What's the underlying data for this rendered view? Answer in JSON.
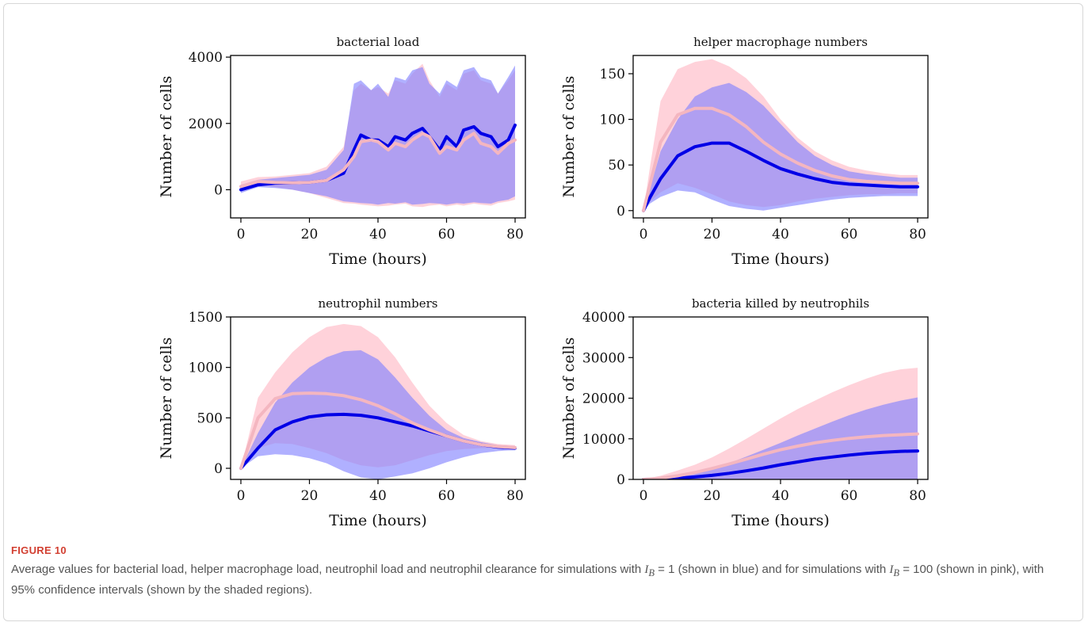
{
  "figure": {
    "label": "FIGURE 10",
    "caption_parts": {
      "part1": "Average values for bacterial load, helper macrophage load, neutrophil load and neutrophil clearance for simulations with ",
      "eq1": "I",
      "sub1": "B",
      "val1": " = 1",
      "part2": " (shown in blue) and for simulations with ",
      "eq2": "I",
      "sub2": "B",
      "val2": " = 100",
      "part3": " (shown in pink), with 95% confidence intervals (shown by the shaded regions)."
    }
  },
  "colors": {
    "blue_line": "#0000e6",
    "blue_band": "#7f7fff",
    "pink_line": "#f4b6c0",
    "pink_band": "#ffd2da",
    "overlap_band": "#b38ee0"
  },
  "chart_data": [
    {
      "type": "line",
      "title": "bacterial load",
      "xlabel": "Time (hours)",
      "ylabel": "Number of cells",
      "xlim": [
        -3,
        83
      ],
      "ylim": [
        -850,
        4050
      ],
      "xticks": [
        0,
        20,
        40,
        60,
        80
      ],
      "yticks": [
        0,
        2000,
        4000
      ],
      "x": [
        0,
        5,
        10,
        15,
        20,
        25,
        30,
        33,
        35,
        38,
        40,
        43,
        45,
        48,
        50,
        53,
        55,
        58,
        60,
        63,
        65,
        68,
        70,
        73,
        75,
        78,
        80
      ],
      "series": [
        {
          "mean": [
            0,
            150,
            200,
            210,
            220,
            280,
            500,
            1200,
            1650,
            1500,
            1500,
            1300,
            1600,
            1500,
            1700,
            1850,
            1600,
            1200,
            1600,
            1300,
            1800,
            1900,
            1700,
            1600,
            1300,
            1500,
            1950
          ],
          "lower": [
            -100,
            80,
            50,
            0,
            -100,
            -200,
            -350,
            -380,
            -400,
            -420,
            -450,
            -400,
            -420,
            -380,
            -450,
            -430,
            -400,
            -420,
            -450,
            -400,
            -420,
            -380,
            -400,
            -420,
            -350,
            -300,
            -200
          ],
          "upper": [
            150,
            300,
            350,
            400,
            450,
            600,
            1200,
            3200,
            3300,
            3000,
            3200,
            2800,
            3400,
            3300,
            3600,
            3700,
            3200,
            2900,
            3300,
            3100,
            3600,
            3700,
            3400,
            3300,
            2900,
            3400,
            3750
          ]
        },
        {
          "mean": [
            100,
            250,
            220,
            210,
            220,
            280,
            600,
            1000,
            1450,
            1500,
            1450,
            1200,
            1400,
            1300,
            1500,
            1700,
            1600,
            1100,
            1300,
            1200,
            1500,
            1700,
            1400,
            1300,
            1100,
            1400,
            1500
          ],
          "lower": [
            -50,
            150,
            80,
            0,
            -100,
            -250,
            -400,
            -420,
            -450,
            -480,
            -500,
            -480,
            -450,
            -420,
            -500,
            -520,
            -480,
            -450,
            -500,
            -450,
            -480,
            -420,
            -450,
            -480,
            -400,
            -350,
            -300
          ],
          "upper": [
            250,
            380,
            400,
            450,
            500,
            700,
            1300,
            3000,
            3200,
            3000,
            3100,
            2900,
            3300,
            3200,
            3500,
            3800,
            3300,
            2800,
            3200,
            3000,
            3500,
            3600,
            3300,
            3200,
            2900,
            3300,
            3600
          ]
        }
      ]
    },
    {
      "type": "line",
      "title": "helper macrophage numbers",
      "xlabel": "Time (hours)",
      "ylabel": "Number of cells",
      "xlim": [
        -3,
        83
      ],
      "ylim": [
        -8,
        170
      ],
      "xticks": [
        0,
        20,
        40,
        60,
        80
      ],
      "yticks": [
        0,
        50,
        100,
        150
      ],
      "x": [
        0,
        2,
        5,
        10,
        15,
        20,
        25,
        30,
        35,
        40,
        45,
        50,
        55,
        60,
        65,
        70,
        75,
        80
      ],
      "series": [
        {
          "mean": [
            0,
            15,
            35,
            60,
            70,
            74,
            74,
            65,
            55,
            46,
            40,
            35,
            31,
            29,
            28,
            27,
            26,
            26
          ],
          "lower": [
            0,
            8,
            15,
            22,
            20,
            12,
            5,
            2,
            0,
            3,
            6,
            9,
            12,
            14,
            15,
            16,
            16,
            16
          ],
          "upper": [
            0,
            25,
            65,
            100,
            125,
            135,
            140,
            130,
            115,
            95,
            75,
            60,
            50,
            43,
            40,
            38,
            36,
            36
          ]
        },
        {
          "mean": [
            0,
            30,
            75,
            105,
            112,
            112,
            105,
            92,
            75,
            62,
            52,
            44,
            38,
            34,
            32,
            31,
            30,
            30
          ],
          "lower": [
            0,
            10,
            20,
            30,
            25,
            18,
            10,
            6,
            4,
            6,
            10,
            13,
            15,
            17,
            18,
            18,
            19,
            19
          ],
          "upper": [
            0,
            50,
            120,
            155,
            163,
            166,
            158,
            145,
            125,
            100,
            80,
            65,
            55,
            48,
            44,
            41,
            39,
            39
          ]
        }
      ]
    },
    {
      "type": "line",
      "title": "neutrophil numbers",
      "xlabel": "Time (hours)",
      "ylabel": "Number of cells",
      "xlim": [
        -3,
        83
      ],
      "ylim": [
        -110,
        1500
      ],
      "xticks": [
        0,
        20,
        40,
        60,
        80
      ],
      "yticks": [
        0,
        500,
        1000,
        1500
      ],
      "x": [
        0,
        5,
        10,
        15,
        20,
        25,
        30,
        35,
        40,
        45,
        50,
        55,
        60,
        65,
        70,
        75,
        80
      ],
      "series": [
        {
          "mean": [
            0,
            200,
            380,
            460,
            510,
            530,
            535,
            525,
            500,
            460,
            420,
            370,
            320,
            270,
            235,
            210,
            200
          ],
          "lower": [
            0,
            120,
            140,
            130,
            100,
            50,
            -30,
            -90,
            -110,
            -80,
            -50,
            0,
            60,
            110,
            150,
            170,
            180
          ],
          "upper": [
            0,
            350,
            650,
            850,
            1000,
            1100,
            1160,
            1170,
            1080,
            900,
            700,
            520,
            380,
            300,
            260,
            230,
            220
          ]
        },
        {
          "mean": [
            0,
            500,
            690,
            740,
            745,
            740,
            720,
            680,
            620,
            540,
            450,
            380,
            320,
            270,
            235,
            215,
            205
          ],
          "lower": [
            0,
            200,
            250,
            240,
            200,
            150,
            80,
            30,
            10,
            30,
            80,
            130,
            170,
            190,
            200,
            200,
            195
          ],
          "upper": [
            0,
            700,
            950,
            1150,
            1300,
            1400,
            1430,
            1410,
            1300,
            1100,
            850,
            620,
            450,
            330,
            270,
            240,
            230
          ]
        }
      ]
    },
    {
      "type": "line",
      "title": "bacteria killed by neutrophils",
      "xlabel": "Time (hours)",
      "ylabel": "Number of cells",
      "xlim": [
        -3,
        83
      ],
      "ylim": [
        0,
        40000
      ],
      "xticks": [
        0,
        20,
        40,
        60,
        80
      ],
      "yticks": [
        0,
        10000,
        20000,
        30000,
        40000
      ],
      "x": [
        0,
        5,
        10,
        15,
        20,
        25,
        30,
        35,
        40,
        45,
        50,
        55,
        60,
        65,
        70,
        75,
        80
      ],
      "series": [
        {
          "mean": [
            0,
            100,
            300,
            600,
            1000,
            1500,
            2100,
            2800,
            3600,
            4300,
            5000,
            5500,
            6000,
            6400,
            6700,
            6900,
            7000
          ],
          "lower": [
            0,
            0,
            0,
            0,
            0,
            0,
            0,
            0,
            0,
            0,
            0,
            0,
            0,
            0,
            0,
            0,
            0
          ],
          "upper": [
            0,
            300,
            900,
            1700,
            2700,
            4000,
            5600,
            7300,
            9000,
            10800,
            12500,
            14200,
            15800,
            17200,
            18400,
            19400,
            20200
          ]
        },
        {
          "mean": [
            0,
            300,
            900,
            1700,
            2700,
            3800,
            5000,
            6200,
            7300,
            8200,
            9000,
            9600,
            10100,
            10500,
            10800,
            11000,
            11200
          ],
          "lower": [
            0,
            0,
            0,
            0,
            0,
            0,
            0,
            0,
            0,
            0,
            0,
            0,
            0,
            0,
            0,
            0,
            0
          ],
          "upper": [
            0,
            900,
            2200,
            3600,
            5400,
            7600,
            10000,
            12500,
            15000,
            17300,
            19400,
            21400,
            23200,
            24800,
            26200,
            27100,
            27500
          ]
        }
      ]
    }
  ]
}
